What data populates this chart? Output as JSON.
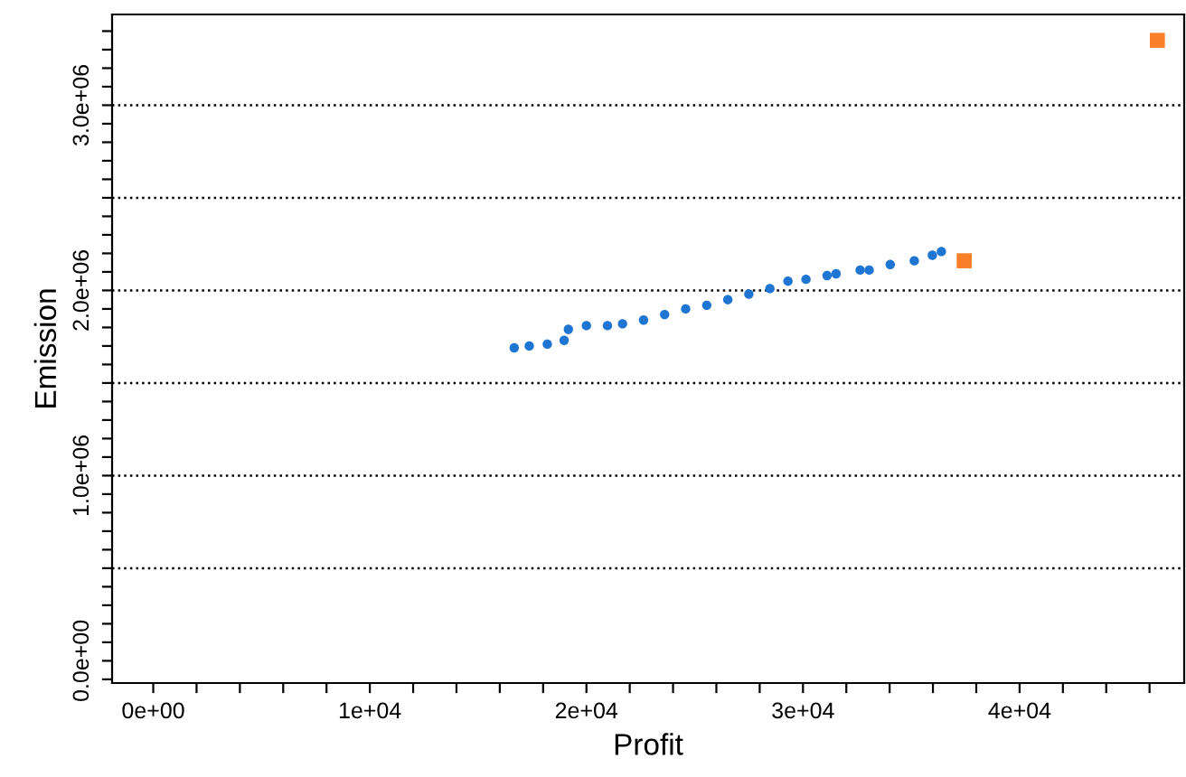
{
  "chart_data": {
    "type": "scatter",
    "xlabel": "Profit",
    "ylabel": "Emission",
    "xlim": [
      -1900,
      47600
    ],
    "ylim": [
      -120000,
      3490000
    ],
    "xticks": [
      {
        "value": 0,
        "label": "0e+00"
      },
      {
        "value": 2000,
        "label": null
      },
      {
        "value": 4000,
        "label": null
      },
      {
        "value": 6000,
        "label": null
      },
      {
        "value": 8000,
        "label": null
      },
      {
        "value": 10000,
        "label": "1e+04"
      },
      {
        "value": 12000,
        "label": null
      },
      {
        "value": 14000,
        "label": null
      },
      {
        "value": 16000,
        "label": null
      },
      {
        "value": 18000,
        "label": null
      },
      {
        "value": 20000,
        "label": "2e+04"
      },
      {
        "value": 22000,
        "label": null
      },
      {
        "value": 24000,
        "label": null
      },
      {
        "value": 26000,
        "label": null
      },
      {
        "value": 28000,
        "label": null
      },
      {
        "value": 30000,
        "label": "3e+04"
      },
      {
        "value": 32000,
        "label": null
      },
      {
        "value": 34000,
        "label": null
      },
      {
        "value": 36000,
        "label": null
      },
      {
        "value": 38000,
        "label": null
      },
      {
        "value": 40000,
        "label": "4e+04"
      },
      {
        "value": 42000,
        "label": null
      },
      {
        "value": 44000,
        "label": null
      },
      {
        "value": 46000,
        "label": null
      }
    ],
    "yticks": [
      {
        "value": -100000,
        "label": null
      },
      {
        "value": 0,
        "label": "0.0e+00"
      },
      {
        "value": 100000,
        "label": null
      },
      {
        "value": 200000,
        "label": null
      },
      {
        "value": 300000,
        "label": null
      },
      {
        "value": 400000,
        "label": null
      },
      {
        "value": 500000,
        "label": null
      },
      {
        "value": 600000,
        "label": null
      },
      {
        "value": 700000,
        "label": null
      },
      {
        "value": 800000,
        "label": null
      },
      {
        "value": 900000,
        "label": null
      },
      {
        "value": 1000000,
        "label": "1.0e+06"
      },
      {
        "value": 1100000,
        "label": null
      },
      {
        "value": 1200000,
        "label": null
      },
      {
        "value": 1300000,
        "label": null
      },
      {
        "value": 1400000,
        "label": null
      },
      {
        "value": 1500000,
        "label": null
      },
      {
        "value": 1600000,
        "label": null
      },
      {
        "value": 1700000,
        "label": null
      },
      {
        "value": 1800000,
        "label": null
      },
      {
        "value": 1900000,
        "label": null
      },
      {
        "value": 2000000,
        "label": "2.0e+06"
      },
      {
        "value": 2100000,
        "label": null
      },
      {
        "value": 2200000,
        "label": null
      },
      {
        "value": 2300000,
        "label": null
      },
      {
        "value": 2400000,
        "label": null
      },
      {
        "value": 2500000,
        "label": null
      },
      {
        "value": 2600000,
        "label": null
      },
      {
        "value": 2700000,
        "label": null
      },
      {
        "value": 2800000,
        "label": null
      },
      {
        "value": 2900000,
        "label": null
      },
      {
        "value": 3000000,
        "label": "3.0e+06"
      },
      {
        "value": 3100000,
        "label": null
      },
      {
        "value": 3200000,
        "label": null
      },
      {
        "value": 3300000,
        "label": null
      },
      {
        "value": 3400000,
        "label": null
      }
    ],
    "grid": false,
    "legend": false,
    "ref_lines": [
      {
        "axis": "y",
        "value": 500000,
        "color": "#000000",
        "line_style": "dotted"
      },
      {
        "axis": "y",
        "value": 1000000,
        "color": "#000000",
        "line_style": "dotted"
      },
      {
        "axis": "y",
        "value": 1500000,
        "color": "#000000",
        "line_style": "dotted"
      },
      {
        "axis": "y",
        "value": 2000000,
        "color": "#000000",
        "line_style": "dotted"
      },
      {
        "axis": "y",
        "value": 2500000,
        "color": "#000000",
        "line_style": "dotted"
      },
      {
        "axis": "y",
        "value": 3000000,
        "color": "#000000",
        "line_style": "dotted"
      }
    ],
    "series": [
      {
        "color": "#1f76d2",
        "marker": "circle",
        "x": [
          16667,
          17361,
          18194,
          18972,
          19167,
          20000,
          20972,
          21667,
          22639,
          23611,
          24583,
          25556,
          26528,
          27500,
          28472,
          29306,
          30139,
          31111,
          31528,
          32639,
          33056,
          34028,
          35139,
          35972,
          36389
        ],
        "values": [
          1690000,
          1700000,
          1710000,
          1730000,
          1790000,
          1810000,
          1810000,
          1820000,
          1840000,
          1870000,
          1900000,
          1920000,
          1950000,
          1980000,
          2010000,
          2050000,
          2060000,
          2080000,
          2090000,
          2110000,
          2110000,
          2140000,
          2160000,
          2190000,
          2210000
        ]
      },
      {
        "color": "#f98029",
        "marker": "square",
        "x": [
          37444,
          46361
        ],
        "values": [
          2160000,
          3350000
        ]
      }
    ]
  }
}
